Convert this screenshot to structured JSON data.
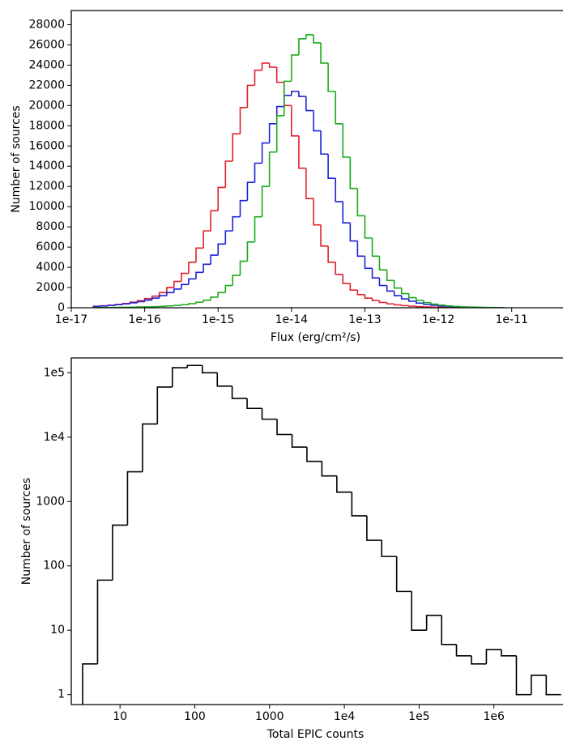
{
  "chart_data": [
    {
      "type": "histogram",
      "x_label": "Flux (erg/cm²/s)",
      "y_label": "Number of sources",
      "log_x": true,
      "log_y": false,
      "bins": [
        2e-17,
        2.51e-17,
        3.16e-17,
        3.98e-17,
        5.01e-17,
        6.31e-17,
        7.94e-17,
        1e-16,
        1.26e-16,
        1.58e-16,
        2e-16,
        2.51e-16,
        3.16e-16,
        3.98e-16,
        5.01e-16,
        6.31e-16,
        7.94e-16,
        1e-15,
        1.26e-15,
        1.58e-15,
        2e-15,
        2.51e-15,
        3.16e-15,
        3.98e-15,
        5.01e-15,
        6.31e-15,
        7.94e-15,
        1e-14,
        1.26e-14,
        1.58e-14,
        2e-14,
        2.51e-14,
        3.16e-14,
        3.98e-14,
        5.01e-14,
        6.31e-14,
        7.94e-14,
        1e-13,
        1.26e-13,
        1.58e-13,
        2e-13,
        2.51e-13,
        3.16e-13,
        3.98e-13,
        5.01e-13,
        6.31e-13,
        7.94e-13,
        1e-12,
        1.26e-12,
        1.58e-12,
        2e-12,
        2.51e-12,
        3.16e-12,
        3.98e-12,
        5.01e-12,
        6.31e-12,
        7.94e-12
      ],
      "series": [
        {
          "color": "#e0202a",
          "values": [
            150,
            200,
            260,
            330,
            420,
            550,
            700,
            900,
            1150,
            1500,
            2000,
            2600,
            3400,
            4500,
            5900,
            7600,
            9600,
            11900,
            14500,
            17200,
            19800,
            22000,
            23500,
            24200,
            23800,
            22300,
            20000,
            17000,
            13800,
            10800,
            8200,
            6100,
            4500,
            3300,
            2400,
            1750,
            1300,
            950,
            700,
            520,
            380,
            280,
            210,
            150,
            110,
            80,
            60,
            45,
            30,
            20,
            15,
            10,
            8,
            5,
            4,
            3
          ]
        },
        {
          "color": "#1c22d6",
          "values": [
            120,
            170,
            230,
            300,
            380,
            480,
            600,
            760,
            950,
            1200,
            1500,
            1850,
            2300,
            2850,
            3500,
            4300,
            5200,
            6300,
            7600,
            9000,
            10600,
            12400,
            14300,
            16300,
            18200,
            19900,
            21000,
            21400,
            20900,
            19500,
            17500,
            15200,
            12800,
            10500,
            8400,
            6600,
            5100,
            3900,
            2950,
            2200,
            1650,
            1200,
            880,
            640,
            460,
            330,
            240,
            170,
            120,
            85,
            60,
            40,
            28,
            20,
            14,
            10
          ]
        },
        {
          "color": "#1aaa1a",
          "values": [
            20,
            25,
            30,
            40,
            50,
            60,
            75,
            90,
            110,
            140,
            180,
            230,
            300,
            400,
            550,
            750,
            1050,
            1500,
            2200,
            3200,
            4600,
            6500,
            9000,
            12000,
            15400,
            19000,
            22400,
            25000,
            26600,
            27000,
            26200,
            24200,
            21400,
            18200,
            14900,
            11800,
            9100,
            6900,
            5100,
            3750,
            2700,
            1950,
            1400,
            1000,
            720,
            510,
            360,
            260,
            180,
            130,
            90,
            65,
            45,
            32,
            22,
            15
          ]
        }
      ],
      "xlim": [
        1e-17,
        5e-11
      ],
      "xticks": [
        1e-17,
        1e-16,
        1e-15,
        1e-14,
        1e-13,
        1e-12,
        1e-11
      ],
      "ylim": [
        0,
        29400
      ],
      "yticks": [
        0,
        2000,
        4000,
        6000,
        8000,
        10000,
        12000,
        14000,
        16000,
        18000,
        20000,
        22000,
        24000,
        26000,
        28000
      ]
    },
    {
      "type": "histogram",
      "x_label": "Total EPIC counts",
      "y_label": "Number of sources",
      "log_x": true,
      "log_y": true,
      "color": "#000000",
      "bins": [
        3.16,
        5.01,
        7.94,
        12.6,
        20,
        31.6,
        50.1,
        79.4,
        126,
        200,
        316,
        501,
        794,
        1260,
        2000,
        3160,
        5010,
        7940,
        12600,
        20000,
        31600,
        50100,
        79400,
        126000,
        200000,
        316000,
        501000,
        794000,
        1260000,
        2000000,
        3160000,
        5010000,
        7940000
      ],
      "values": [
        3,
        60,
        430,
        2900,
        16000,
        60000,
        120000,
        130000,
        100000,
        62000,
        40000,
        28000,
        19000,
        11000,
        7000,
        4200,
        2500,
        1400,
        600,
        250,
        140,
        40,
        10,
        17,
        6,
        4,
        3,
        5,
        4,
        1,
        2,
        1
      ],
      "xlim": [
        2.23,
        8400000
      ],
      "xticks": [
        10,
        100,
        1000,
        {
          "value": 10000,
          "label": "1e4"
        },
        {
          "value": 100000,
          "label": "1e5"
        },
        {
          "value": 1000000,
          "label": "1e6"
        }
      ],
      "ylim": [
        0.7,
        170000
      ],
      "yticks": [
        1,
        10,
        100,
        1000,
        {
          "value": 10000,
          "label": "1e4"
        },
        {
          "value": 100000,
          "label": "1e5"
        }
      ]
    }
  ]
}
